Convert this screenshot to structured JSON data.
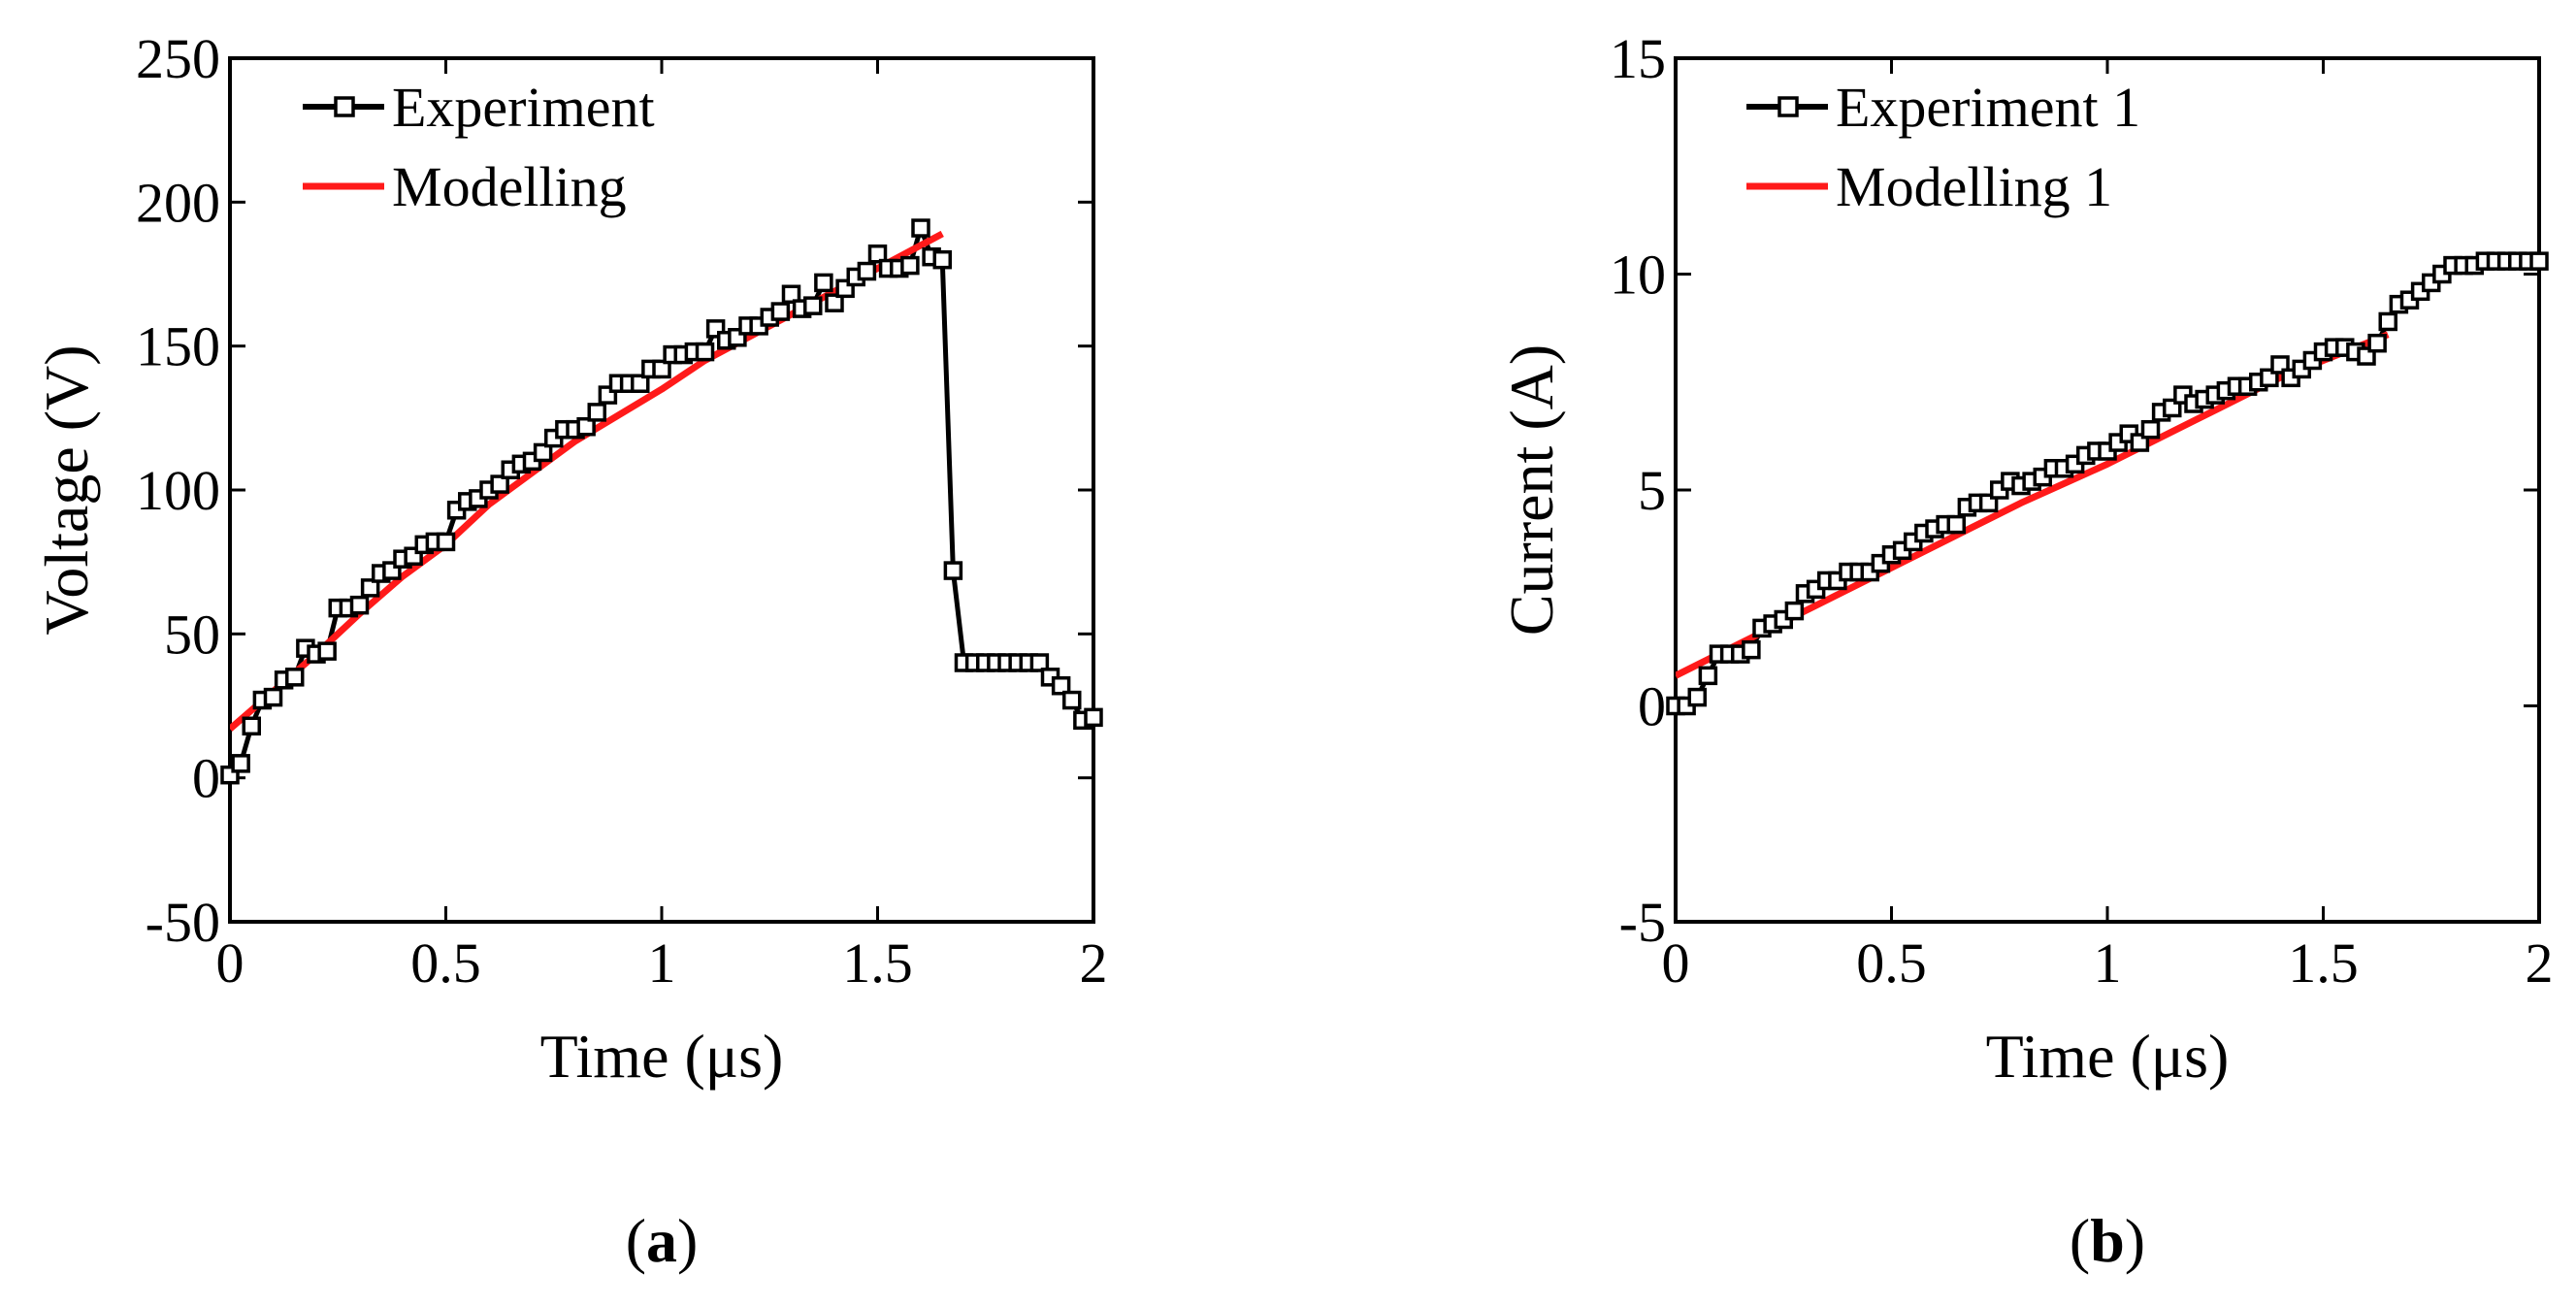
{
  "chart_data": [
    {
      "type": "line",
      "panel_label": "a",
      "xlabel": "Time (μs)",
      "ylabel": "Voltage (V)",
      "xlim": [
        0,
        2
      ],
      "ylim": [
        -50,
        250
      ],
      "xticks": [
        0,
        0.5,
        1,
        1.5,
        2
      ],
      "xtick_labels": [
        "0",
        "0.5",
        "1",
        "1.5",
        "2"
      ],
      "yticks": [
        -50,
        0,
        50,
        100,
        150,
        200,
        250
      ],
      "ytick_labels": [
        "-50",
        "0",
        "50",
        "100",
        "150",
        "200",
        "250"
      ],
      "legend_position": "top-left",
      "series": [
        {
          "name": "Experiment",
          "color": "#000000",
          "marker": "open-square",
          "x": [
            0.0,
            0.025,
            0.05,
            0.075,
            0.1,
            0.125,
            0.15,
            0.175,
            0.2,
            0.225,
            0.25,
            0.275,
            0.3,
            0.325,
            0.35,
            0.375,
            0.4,
            0.425,
            0.45,
            0.475,
            0.5,
            0.525,
            0.55,
            0.575,
            0.6,
            0.625,
            0.65,
            0.675,
            0.7,
            0.725,
            0.75,
            0.775,
            0.8,
            0.825,
            0.85,
            0.875,
            0.9,
            0.925,
            0.95,
            0.975,
            1.0,
            1.025,
            1.05,
            1.075,
            1.1,
            1.125,
            1.15,
            1.175,
            1.2,
            1.225,
            1.25,
            1.275,
            1.3,
            1.325,
            1.35,
            1.375,
            1.4,
            1.425,
            1.45,
            1.475,
            1.5,
            1.525,
            1.55,
            1.575,
            1.6,
            1.625,
            1.65,
            1.675,
            1.7,
            1.725,
            1.75,
            1.775,
            1.8,
            1.825,
            1.85,
            1.875,
            1.9,
            1.925,
            1.95,
            1.975,
            2.0
          ],
          "values": [
            1,
            5,
            18,
            27,
            28,
            34,
            35,
            45,
            43,
            44,
            59,
            59,
            60,
            66,
            71,
            72,
            76,
            77,
            81,
            82,
            82,
            93,
            96,
            97,
            100,
            102,
            107,
            109,
            110,
            113,
            118,
            121,
            121,
            122,
            127,
            133,
            137,
            137,
            137,
            142,
            142,
            147,
            147,
            148,
            148,
            156,
            152,
            153,
            157,
            157,
            160,
            162,
            168,
            163,
            164,
            172,
            165,
            170,
            174,
            176,
            182,
            177,
            177,
            178,
            191,
            181,
            180,
            72,
            40,
            40,
            40,
            40,
            40,
            40,
            40,
            40,
            35,
            32,
            27,
            20,
            21
          ]
        },
        {
          "name": "Modelling",
          "color": "#ff1a1a",
          "x": [
            0.0,
            0.1,
            0.2,
            0.3,
            0.4,
            0.5,
            0.6,
            0.7,
            0.8,
            0.9,
            1.0,
            1.1,
            1.2,
            1.3,
            1.4,
            1.5,
            1.6,
            1.65
          ],
          "values": [
            17,
            30,
            43,
            57,
            70,
            81,
            95,
            106,
            117,
            126,
            135,
            145,
            153,
            161,
            169,
            177,
            185,
            189
          ]
        }
      ]
    },
    {
      "type": "line",
      "panel_label": "b",
      "xlabel": "Time (μs)",
      "ylabel": "Current (A)",
      "xlim": [
        0,
        2
      ],
      "ylim": [
        -5,
        15
      ],
      "xticks": [
        0,
        0.5,
        1,
        1.5,
        2
      ],
      "xtick_labels": [
        "0",
        "0.5",
        "1",
        "1.5",
        "2"
      ],
      "yticks": [
        -5,
        0,
        5,
        10,
        15
      ],
      "ytick_labels": [
        "-5",
        "0",
        "5",
        "10",
        "15"
      ],
      "legend_position": "top-left",
      "series": [
        {
          "name": "Experiment 1",
          "color": "#000000",
          "marker": "open-square",
          "x": [
            0.0,
            0.025,
            0.05,
            0.075,
            0.1,
            0.125,
            0.15,
            0.175,
            0.2,
            0.225,
            0.25,
            0.275,
            0.3,
            0.325,
            0.35,
            0.375,
            0.4,
            0.425,
            0.45,
            0.475,
            0.5,
            0.525,
            0.55,
            0.575,
            0.6,
            0.625,
            0.65,
            0.675,
            0.7,
            0.725,
            0.75,
            0.775,
            0.8,
            0.825,
            0.85,
            0.875,
            0.9,
            0.925,
            0.95,
            0.975,
            1.0,
            1.025,
            1.05,
            1.075,
            1.1,
            1.125,
            1.15,
            1.175,
            1.2,
            1.225,
            1.25,
            1.275,
            1.3,
            1.325,
            1.35,
            1.375,
            1.4,
            1.425,
            1.45,
            1.475,
            1.5,
            1.525,
            1.55,
            1.575,
            1.6,
            1.625,
            1.65,
            1.675,
            1.7,
            1.725,
            1.75,
            1.775,
            1.8,
            1.825,
            1.85,
            1.875,
            1.9,
            1.925,
            1.95,
            1.975,
            2.0
          ],
          "values": [
            0.0,
            0.0,
            0.2,
            0.7,
            1.2,
            1.2,
            1.2,
            1.3,
            1.8,
            1.9,
            2.0,
            2.2,
            2.6,
            2.7,
            2.9,
            2.9,
            3.1,
            3.1,
            3.1,
            3.3,
            3.5,
            3.6,
            3.8,
            4.0,
            4.1,
            4.2,
            4.2,
            4.6,
            4.7,
            4.7,
            5.0,
            5.2,
            5.1,
            5.2,
            5.3,
            5.5,
            5.5,
            5.6,
            5.8,
            5.9,
            5.9,
            6.1,
            6.3,
            6.1,
            6.4,
            6.8,
            6.9,
            7.2,
            7.0,
            7.1,
            7.2,
            7.3,
            7.4,
            7.4,
            7.5,
            7.6,
            7.9,
            7.6,
            7.8,
            8.0,
            8.2,
            8.3,
            8.3,
            8.2,
            8.1,
            8.4,
            8.9,
            9.3,
            9.4,
            9.6,
            9.8,
            10.0,
            10.2,
            10.2,
            10.2,
            10.3,
            10.3,
            10.3,
            10.3,
            10.3,
            10.3
          ]
        },
        {
          "name": "Modelling 1",
          "color": "#ff1a1a",
          "x": [
            0.0,
            0.2,
            0.4,
            0.6,
            0.8,
            1.0,
            1.2,
            1.4,
            1.6,
            1.65
          ],
          "values": [
            0.7,
            1.7,
            2.7,
            3.7,
            4.7,
            5.6,
            6.6,
            7.6,
            8.4,
            8.6
          ]
        }
      ]
    }
  ]
}
